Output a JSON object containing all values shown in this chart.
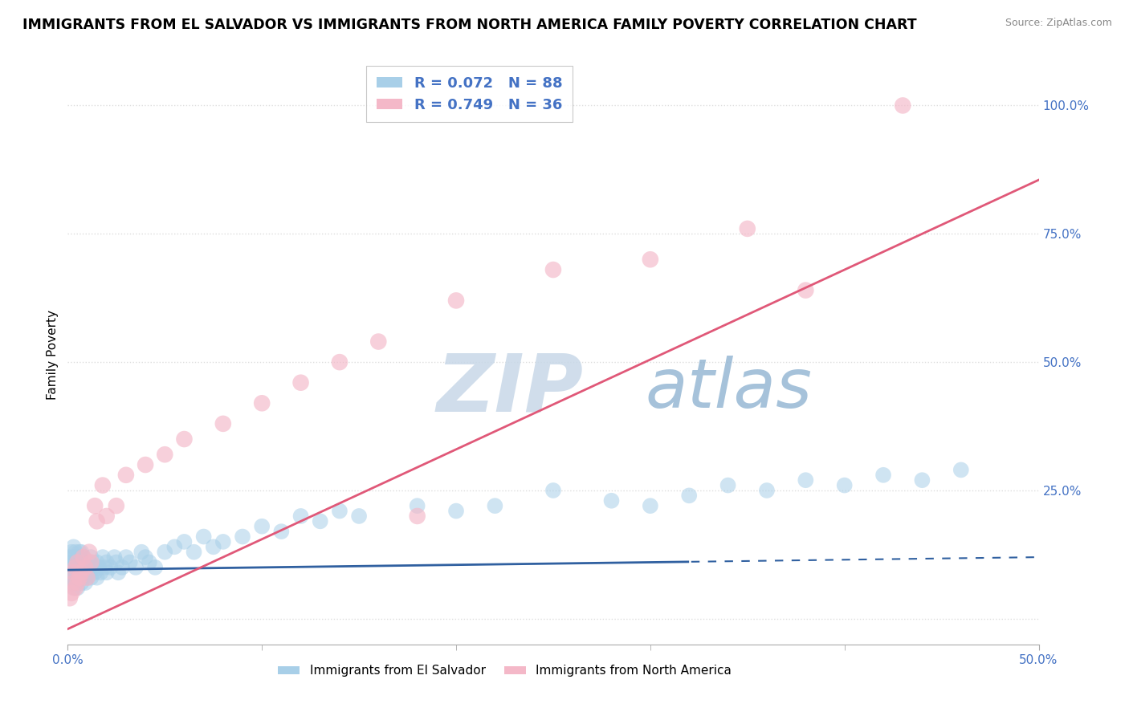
{
  "title": "IMMIGRANTS FROM EL SALVADOR VS IMMIGRANTS FROM NORTH AMERICA FAMILY POVERTY CORRELATION CHART",
  "source": "Source: ZipAtlas.com",
  "ylabel": "Family Poverty",
  "xlim": [
    0.0,
    0.5
  ],
  "ylim": [
    -0.05,
    1.08
  ],
  "blue_R": 0.072,
  "blue_N": 88,
  "pink_R": 0.749,
  "pink_N": 36,
  "blue_color": "#a8cfe8",
  "pink_color": "#f4b8c8",
  "blue_line_color": "#3060a0",
  "pink_line_color": "#e05878",
  "watermark_zip_color": "#9ab8d8",
  "watermark_atlas_color": "#78a8cc",
  "legend_label_blue": "Immigrants from El Salvador",
  "legend_label_pink": "Immigrants from North America",
  "legend_text_color": "#4472c4",
  "ytick_color": "#4472c4",
  "xtick_color": "#4472c4",
  "grid_color": "#dddddd",
  "blue_scatter_x": [
    0.001,
    0.001,
    0.001,
    0.002,
    0.002,
    0.002,
    0.002,
    0.003,
    0.003,
    0.003,
    0.003,
    0.003,
    0.004,
    0.004,
    0.004,
    0.004,
    0.005,
    0.005,
    0.005,
    0.005,
    0.006,
    0.006,
    0.006,
    0.007,
    0.007,
    0.007,
    0.007,
    0.008,
    0.008,
    0.008,
    0.009,
    0.009,
    0.01,
    0.01,
    0.011,
    0.011,
    0.012,
    0.012,
    0.013,
    0.014,
    0.015,
    0.015,
    0.016,
    0.017,
    0.018,
    0.019,
    0.02,
    0.02,
    0.022,
    0.024,
    0.025,
    0.026,
    0.028,
    0.03,
    0.032,
    0.035,
    0.038,
    0.04,
    0.042,
    0.045,
    0.05,
    0.055,
    0.06,
    0.065,
    0.07,
    0.075,
    0.08,
    0.09,
    0.1,
    0.11,
    0.12,
    0.13,
    0.14,
    0.15,
    0.18,
    0.2,
    0.22,
    0.25,
    0.28,
    0.3,
    0.32,
    0.34,
    0.36,
    0.38,
    0.4,
    0.42,
    0.44,
    0.46
  ],
  "blue_scatter_y": [
    0.08,
    0.1,
    0.12,
    0.07,
    0.09,
    0.11,
    0.13,
    0.06,
    0.08,
    0.1,
    0.12,
    0.14,
    0.07,
    0.09,
    0.11,
    0.13,
    0.08,
    0.1,
    0.12,
    0.06,
    0.09,
    0.11,
    0.13,
    0.07,
    0.09,
    0.11,
    0.13,
    0.08,
    0.1,
    0.12,
    0.07,
    0.09,
    0.08,
    0.1,
    0.09,
    0.11,
    0.08,
    0.12,
    0.1,
    0.09,
    0.08,
    0.11,
    0.1,
    0.09,
    0.12,
    0.1,
    0.09,
    0.11,
    0.1,
    0.12,
    0.11,
    0.09,
    0.1,
    0.12,
    0.11,
    0.1,
    0.13,
    0.12,
    0.11,
    0.1,
    0.13,
    0.14,
    0.15,
    0.13,
    0.16,
    0.14,
    0.15,
    0.16,
    0.18,
    0.17,
    0.2,
    0.19,
    0.21,
    0.2,
    0.22,
    0.21,
    0.22,
    0.25,
    0.23,
    0.22,
    0.24,
    0.26,
    0.25,
    0.27,
    0.26,
    0.28,
    0.27,
    0.29
  ],
  "pink_scatter_x": [
    0.001,
    0.002,
    0.003,
    0.003,
    0.004,
    0.004,
    0.005,
    0.005,
    0.006,
    0.007,
    0.008,
    0.009,
    0.01,
    0.011,
    0.012,
    0.014,
    0.015,
    0.018,
    0.02,
    0.025,
    0.03,
    0.04,
    0.05,
    0.06,
    0.08,
    0.1,
    0.12,
    0.14,
    0.16,
    0.18,
    0.2,
    0.25,
    0.3,
    0.35,
    0.38,
    0.43
  ],
  "pink_scatter_y": [
    0.04,
    0.05,
    0.07,
    0.09,
    0.06,
    0.1,
    0.07,
    0.11,
    0.08,
    0.09,
    0.12,
    0.1,
    0.08,
    0.13,
    0.11,
    0.22,
    0.19,
    0.26,
    0.2,
    0.22,
    0.28,
    0.3,
    0.32,
    0.35,
    0.38,
    0.42,
    0.46,
    0.5,
    0.54,
    0.2,
    0.62,
    0.68,
    0.7,
    0.76,
    0.64,
    1.0
  ]
}
